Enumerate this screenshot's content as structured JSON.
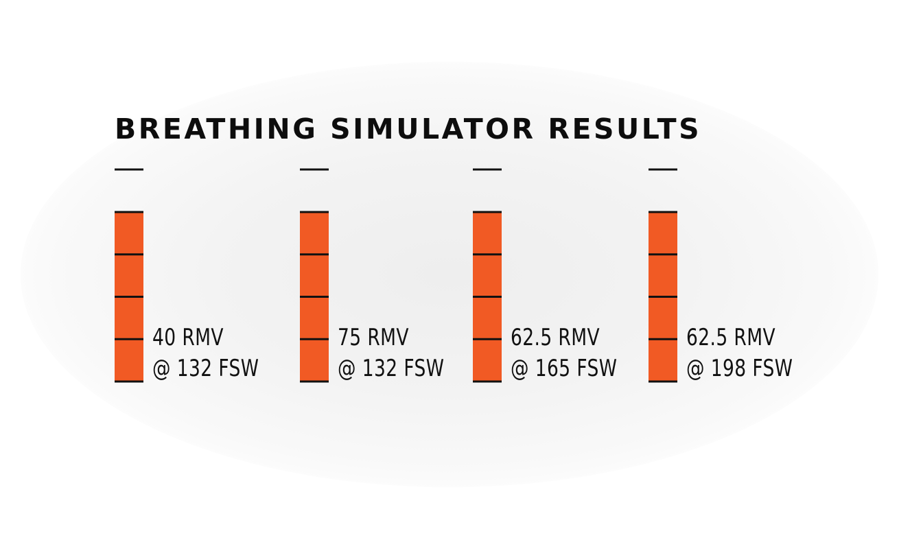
{
  "title": "BREATHING SIMULATOR RESULTS",
  "colors": {
    "bar": "#f15a24",
    "tick": "#111111",
    "text": "#0d0d0d"
  },
  "chart_data": {
    "type": "bar",
    "title": "BREATHING SIMULATOR RESULTS",
    "segments_per_gauge": 4,
    "gauges": [
      {
        "rmv_label": "40 RMV",
        "depth_label": "@ 132 FSW",
        "rmv": 40,
        "depth_fsw": 132
      },
      {
        "rmv_label": "75 RMV",
        "depth_label": "@ 132 FSW",
        "rmv": 75,
        "depth_fsw": 132
      },
      {
        "rmv_label": "62.5 RMV",
        "depth_label": "@ 165 FSW",
        "rmv": 62.5,
        "depth_fsw": 165
      },
      {
        "rmv_label": "62.5 RMV",
        "depth_label": "@ 198 FSW",
        "rmv": 62.5,
        "depth_fsw": 198
      }
    ]
  }
}
